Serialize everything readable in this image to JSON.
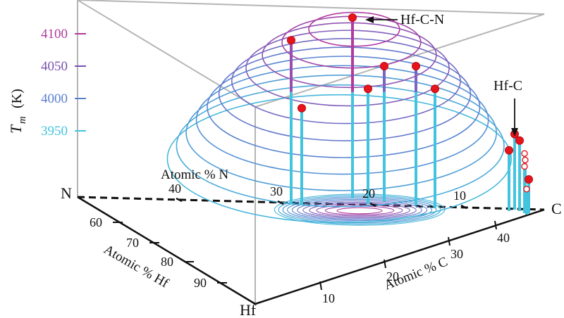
{
  "chart_data": {
    "type": "3d-contour-stem",
    "ylabel": "T",
    "ylabel_sub": "m",
    "yunit": "(K)",
    "yticks": [
      {
        "value": 3950,
        "label": "3950",
        "color": "#42c4de"
      },
      {
        "value": 4000,
        "label": "4000",
        "color": "#5b7fd0"
      },
      {
        "value": 4050,
        "label": "4050",
        "color": "#7a4fb0"
      },
      {
        "value": 4100,
        "label": "4100",
        "color": "#b03aa0"
      }
    ],
    "corners": {
      "N": "N",
      "C": "C",
      "Hf": "Hf"
    },
    "axis_N": {
      "title": "Atomic % N",
      "ticks": [
        "40",
        "30",
        "20",
        "10"
      ]
    },
    "axis_Hf": {
      "title": "Atomic % Hf",
      "ticks": [
        "60",
        "70",
        "80",
        "90"
      ]
    },
    "axis_C": {
      "title": "Atomic % C",
      "ticks": [
        "10",
        "20",
        "30",
        "40"
      ]
    },
    "annotations": [
      {
        "text": "Hf-C-N",
        "target": "maximum"
      },
      {
        "text": "Hf-C",
        "target": "binary"
      }
    ],
    "contour_levels_K": [
      3920,
      3940,
      3960,
      3980,
      4000,
      4020,
      4040,
      4060,
      4080,
      4100,
      4120
    ],
    "points": [
      {
        "series": "Hf-C-N",
        "Tm": 4125,
        "marker": "filled"
      },
      {
        "series": "Hf-C-N",
        "Tm": 4090,
        "marker": "filled"
      },
      {
        "series": "Hf-C-N",
        "Tm": 4050,
        "marker": "filled"
      },
      {
        "series": "Hf-C-N",
        "Tm": 4050,
        "marker": "filled"
      },
      {
        "series": "Hf-C-N",
        "Tm": 4015,
        "marker": "filled"
      },
      {
        "series": "Hf-C-N",
        "Tm": 4015,
        "marker": "filled"
      },
      {
        "series": "Hf-C-N",
        "Tm": 3985,
        "marker": "filled"
      },
      {
        "series": "Hf-C",
        "Tm": 3945,
        "marker": "filled"
      },
      {
        "series": "Hf-C",
        "Tm": 3935,
        "marker": "filled"
      },
      {
        "series": "Hf-C",
        "Tm": 3920,
        "marker": "filled"
      },
      {
        "series": "Hf-C",
        "Tm": 3915,
        "marker": "open"
      },
      {
        "series": "Hf-C",
        "Tm": 3905,
        "marker": "open"
      },
      {
        "series": "Hf-C",
        "Tm": 3895,
        "marker": "open"
      },
      {
        "series": "Hf-C",
        "Tm": 3875,
        "marker": "filled"
      },
      {
        "series": "Hf-C",
        "Tm": 3860,
        "marker": "open"
      }
    ],
    "colors": {
      "low": "#42c4de",
      "mid": "#5b7fd0",
      "high": "#b03aa0",
      "point": "#e8141c",
      "frame": "#b5b5b5"
    }
  }
}
